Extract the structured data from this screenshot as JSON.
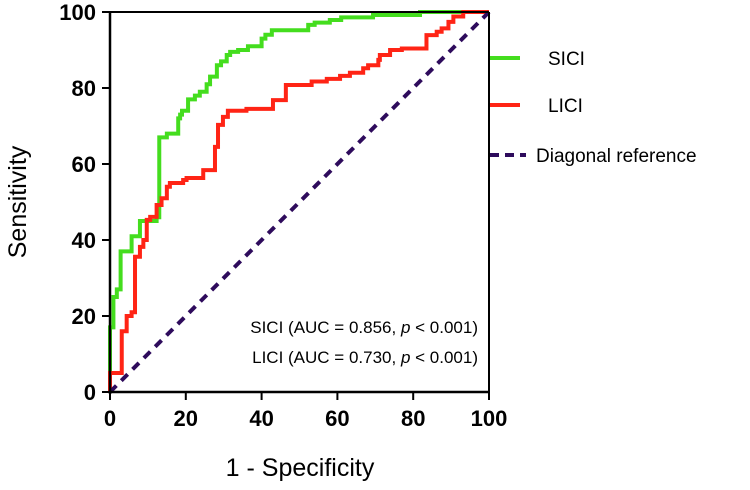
{
  "chart_data": {
    "type": "line",
    "title": "",
    "xlabel": "1 - Specificity",
    "ylabel": "Sensitivity",
    "xlim": [
      0,
      100
    ],
    "ylim": [
      0,
      100
    ],
    "xticks": [
      "0",
      "20",
      "40",
      "60",
      "80",
      "100"
    ],
    "yticks": [
      "0",
      "20",
      "40",
      "60",
      "80",
      "100"
    ],
    "grid": false,
    "legend_position": "right",
    "series": [
      {
        "name": "SICI",
        "color": "#44dd1e",
        "style": "step",
        "points": [
          [
            0,
            17
          ],
          [
            0.9,
            25
          ],
          [
            1.8,
            27
          ],
          [
            2.8,
            37
          ],
          [
            5.7,
            41
          ],
          [
            7.9,
            45
          ],
          [
            12.3,
            46
          ],
          [
            13,
            67
          ],
          [
            15,
            68
          ],
          [
            18,
            72
          ],
          [
            18.5,
            73
          ],
          [
            19,
            74
          ],
          [
            20.6,
            77
          ],
          [
            22.4,
            78
          ],
          [
            23.7,
            79
          ],
          [
            25.5,
            81
          ],
          [
            26.4,
            83
          ],
          [
            28.2,
            86
          ],
          [
            29.3,
            87
          ],
          [
            30.8,
            88.7
          ],
          [
            31.7,
            89.5
          ],
          [
            33.8,
            90
          ],
          [
            36.4,
            91
          ],
          [
            40,
            93
          ],
          [
            41,
            94
          ],
          [
            42.7,
            95.2
          ],
          [
            52.3,
            96.6
          ],
          [
            54,
            97.2
          ],
          [
            58,
            97.9
          ],
          [
            61,
            98.6
          ],
          [
            69.4,
            99.2
          ],
          [
            81.8,
            100
          ],
          [
            100,
            100
          ]
        ]
      },
      {
        "name": "LICI",
        "color": "#ff2415",
        "style": "step",
        "points": [
          [
            0,
            5
          ],
          [
            3.1,
            16
          ],
          [
            4.4,
            20
          ],
          [
            5.7,
            21
          ],
          [
            6.6,
            35.6
          ],
          [
            7.9,
            38.2
          ],
          [
            8.8,
            40
          ],
          [
            9.7,
            45.3
          ],
          [
            10.6,
            46.1
          ],
          [
            12.3,
            49.2
          ],
          [
            13.6,
            51
          ],
          [
            15,
            54
          ],
          [
            15.8,
            55
          ],
          [
            19.3,
            55.8
          ],
          [
            20.2,
            56.3
          ],
          [
            24.6,
            58.4
          ],
          [
            27.7,
            64.5
          ],
          [
            28.5,
            70.3
          ],
          [
            29.8,
            72.4
          ],
          [
            31.1,
            74
          ],
          [
            36,
            74.5
          ],
          [
            43,
            76.8
          ],
          [
            46.4,
            80.8
          ],
          [
            53.2,
            81.7
          ],
          [
            57.2,
            82.4
          ],
          [
            60.7,
            83.2
          ],
          [
            63.3,
            84
          ],
          [
            66.8,
            85.2
          ],
          [
            68.1,
            86
          ],
          [
            70.8,
            87.4
          ],
          [
            71.2,
            88.7
          ],
          [
            73.9,
            90
          ],
          [
            77,
            90.4
          ],
          [
            83.5,
            93.9
          ],
          [
            86.2,
            94.8
          ],
          [
            87.5,
            95.7
          ],
          [
            89.3,
            97.4
          ],
          [
            90.6,
            98.8
          ],
          [
            93.2,
            99.2
          ],
          [
            93.2,
            100
          ],
          [
            100,
            100
          ]
        ]
      },
      {
        "name": "Diagonal reference",
        "color": "#2e0b5c",
        "style": "dashed",
        "points": [
          [
            0,
            0
          ],
          [
            100,
            100
          ]
        ]
      }
    ],
    "annotations": [
      {
        "label": "SICI (AUC = 0.856, ",
        "italic": "p",
        "rest": " < 0.001)"
      },
      {
        "label": "LICI (AUC = 0.730, ",
        "italic": "p",
        "rest": " < 0.001)"
      }
    ]
  }
}
